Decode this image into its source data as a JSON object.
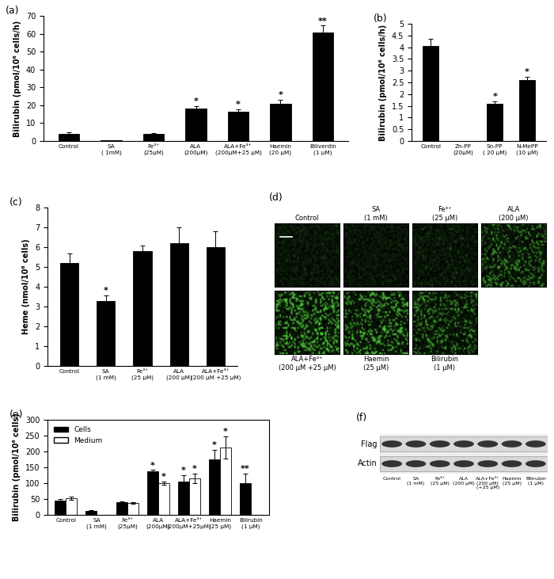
{
  "chart_data": [
    {
      "type": "bar",
      "title": "(a)",
      "y_label": "Bilirubin (pmol/10⁶ cells/h)",
      "categories": [
        "Control",
        "SA\n( 1mM)",
        "Fe³⁺\n(25μM)",
        "ALA\n(200μM)",
        "ALA+Fe³⁺\n(200μM+25 μM)",
        "Haemin\n(20 μM)",
        "Biliverdin\n(1 μM)"
      ],
      "values": [
        4.2,
        0.3,
        4.0,
        18,
        16.5,
        21,
        60.5
      ],
      "error": [
        0.5,
        0,
        0.4,
        1.5,
        1.2,
        2,
        4
      ],
      "annotations": [
        null,
        null,
        null,
        "*",
        "*",
        "*",
        "**"
      ],
      "color": "#000000",
      "ylim": [
        0,
        70
      ],
      "yticks": [
        0,
        10,
        20,
        30,
        40,
        50,
        60,
        70
      ]
    },
    {
      "type": "bar",
      "title": "(b)",
      "y_label": "Bilirubin (pmol/10⁶ cells/h)",
      "categories": [
        "Control",
        "Zn-PP\n(20μM)",
        "Sn-PP\n( 20 μM)",
        "N-MePP\n(10 μM)"
      ],
      "values": [
        4.05,
        0,
        1.6,
        2.6
      ],
      "error": [
        0.3,
        0,
        0.1,
        0.15
      ],
      "annotations": [
        null,
        null,
        "*",
        "*"
      ],
      "color": "#000000",
      "ylim": [
        0,
        5
      ],
      "yticks": [
        0,
        0.5,
        1,
        1.5,
        2,
        2.5,
        3,
        3.5,
        4,
        4.5,
        5
      ]
    },
    {
      "type": "bar",
      "title": "(c)",
      "y_label": "Heme (nmol/10⁶ cells)",
      "categories": [
        "Control",
        "SA\n(1 mM)",
        "Fe³⁺\n(25 μM)",
        "ALA\n(200 μM)",
        "ALA+Fe³⁺\n(200 μM +25 μM)"
      ],
      "values": [
        5.2,
        3.3,
        5.8,
        6.2,
        6.0
      ],
      "error": [
        0.5,
        0.25,
        0.3,
        0.8,
        0.8
      ],
      "annotations": [
        null,
        "*",
        null,
        null,
        null
      ],
      "color": "#000000",
      "ylim": [
        0,
        8
      ],
      "yticks": [
        0,
        1,
        2,
        3,
        4,
        5,
        6,
        7,
        8
      ]
    },
    {
      "type": "bar",
      "title": "(e)",
      "y_label": "Bilirubin (pmol/10⁶ cells)",
      "categories": [
        "Control",
        "SA\n(1 mM)",
        "Fe³⁺\n(25μM)",
        "ALA\n(200μM)",
        "ALA+Fe³⁺\n(200μM+25μM)",
        "Haemin\n(25 μM)",
        "Bilirubin\n(1 μM)"
      ],
      "series": [
        {
          "name": "Cells",
          "color": "#000000",
          "values": [
            45,
            13,
            40,
            138,
            105,
            175,
            100
          ],
          "error": [
            5,
            1,
            2,
            4,
            20,
            30,
            30
          ],
          "annotations": [
            null,
            null,
            null,
            "*",
            "*",
            "*",
            "**"
          ]
        },
        {
          "name": "Medium",
          "color": "#ffffff",
          "values": [
            53,
            null,
            38,
            100,
            115,
            213,
            null
          ],
          "error": [
            5,
            null,
            2,
            5,
            15,
            35,
            null
          ],
          "annotations": [
            null,
            null,
            null,
            "*",
            "*",
            "*",
            null
          ]
        }
      ],
      "legend": "upper left",
      "ylim": [
        0,
        300
      ],
      "yticks": [
        0,
        50,
        100,
        150,
        200,
        250,
        300
      ]
    }
  ],
  "images": {
    "title": "(d)",
    "panels": [
      "Control",
      "SA\n(1 mM)",
      "Fe³⁺\n(25 μM)",
      "ALA\n(200 μM)",
      "ALA+Fe³⁺\n(200 μM +25 μM)",
      "Haemin\n(25 μM)",
      "Bilirubin\n(1 μM)"
    ]
  },
  "blot": {
    "title": "(f)",
    "rows": [
      "Flag",
      "Actin"
    ],
    "lanes": [
      "Control",
      "SA\n(1 mM)",
      "Fe³⁺\n(25 μM)",
      "ALA\n(200 μM)",
      "ALA+Fe³⁺\n(200 μM)\n(+25 μM)",
      "Haemin\n(25 μM)",
      "Bilirubin\n(1 μM)"
    ]
  }
}
